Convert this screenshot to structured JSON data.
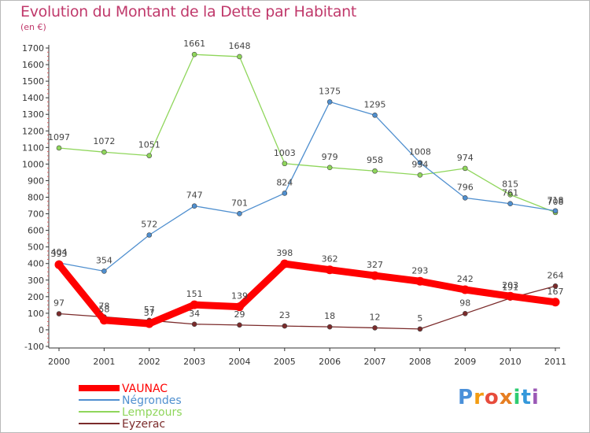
{
  "title": "Evolution du Montant de la Dette par Habitant",
  "unit": "(en €)",
  "logo": "Proxiti",
  "chart_data": {
    "type": "line",
    "x": [
      "2000",
      "2001",
      "2002",
      "2003",
      "2004",
      "2005",
      "2006",
      "2007",
      "2008",
      "2009",
      "2010",
      "2011"
    ],
    "ylim": [
      -100,
      1700
    ],
    "yticks": [
      -100,
      0,
      100,
      200,
      300,
      400,
      500,
      600,
      700,
      800,
      900,
      1000,
      1100,
      1200,
      1300,
      1400,
      1500,
      1600,
      1700
    ],
    "grid": false,
    "legend_position": "bottom-left",
    "series": [
      {
        "name": "Eyzerac",
        "color": "#7b2b2b",
        "values": [
          97,
          78,
          57,
          34,
          29,
          23,
          18,
          12,
          5,
          98,
          191,
          264
        ]
      },
      {
        "name": "Lempzours",
        "color": "#8fd65b",
        "values": [
          1097,
          1072,
          1051,
          1661,
          1648,
          1003,
          979,
          958,
          934,
          974,
          815,
          708
        ]
      },
      {
        "name": "Négrondes",
        "color": "#4f8fcf",
        "values": [
          404,
          354,
          572,
          747,
          701,
          824,
          1375,
          1295,
          1008,
          796,
          761,
          718
        ]
      },
      {
        "name": "VAUNAC",
        "color": "#ff0000",
        "values": [
          393,
          58,
          37,
          151,
          139,
          398,
          362,
          327,
          293,
          242,
          203,
          167
        ]
      }
    ]
  }
}
